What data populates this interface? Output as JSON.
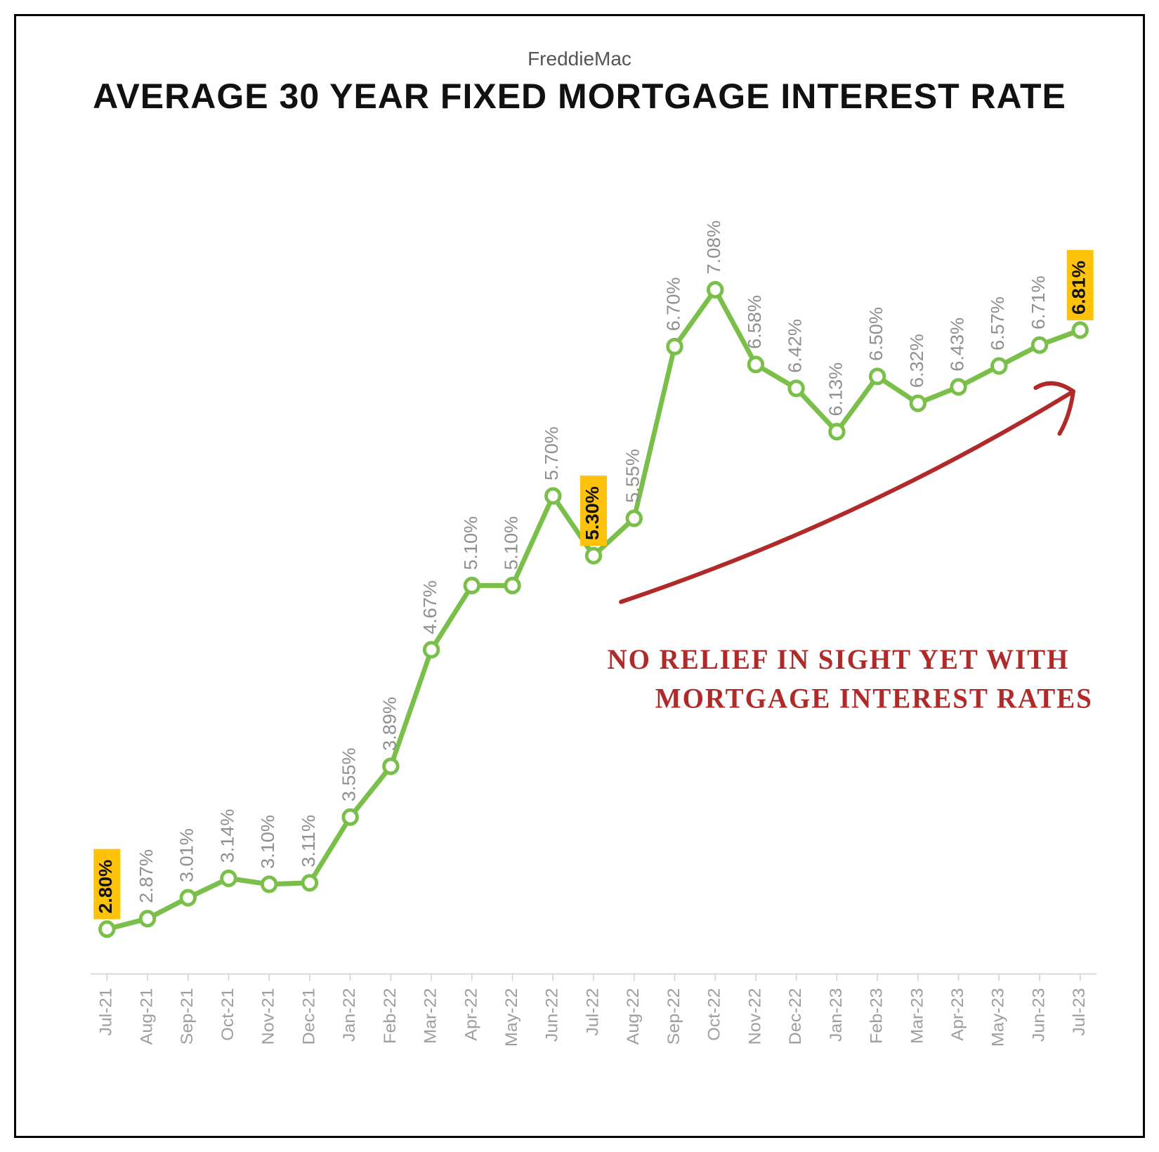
{
  "source_label": "FreddieMac",
  "title": "AVERAGE 30 YEAR FIXED MORTGAGE INTEREST RATE",
  "chart": {
    "type": "line",
    "background_color": "#ffffff",
    "line_color": "#79bf4a",
    "line_width": 7,
    "marker_style": "circle",
    "marker_radius": 10,
    "marker_fill": "#ffffff",
    "marker_stroke": "#79bf4a",
    "marker_stroke_width": 5,
    "axis_color": "#cfcfcf",
    "axis_width": 1.5,
    "tick_length": 10,
    "xaxis_label_color": "#9e9e9e",
    "xaxis_label_fontsize": 25,
    "data_label_color": "#8f8f8f",
    "data_label_fontsize": 27,
    "data_label_offset": 22,
    "highlight_bg": "#ffc20a",
    "highlight_text_color": "#111111",
    "highlight_fontweight": "bold",
    "ylim": [
      2.5,
      7.5
    ],
    "categories": [
      "Jul-21",
      "Aug-21",
      "Sep-21",
      "Oct-21",
      "Nov-21",
      "Dec-21",
      "Jan-22",
      "Feb-22",
      "Mar-22",
      "Apr-22",
      "May-22",
      "Jun-22",
      "Jul-22",
      "Aug-22",
      "Sep-22",
      "Oct-22",
      "Nov-22",
      "Dec-22",
      "Jan-23",
      "Feb-23",
      "Mar-23",
      "Apr-23",
      "May-23",
      "Jun-23",
      "Jul-23"
    ],
    "values": [
      2.8,
      2.87,
      3.01,
      3.14,
      3.1,
      3.11,
      3.55,
      3.89,
      4.67,
      5.1,
      5.1,
      5.7,
      5.3,
      5.55,
      6.7,
      7.08,
      6.58,
      6.42,
      6.13,
      6.5,
      6.32,
      6.43,
      6.57,
      6.71,
      6.81
    ],
    "labels": [
      "2.80%",
      "2.87%",
      "3.01%",
      "3.14%",
      "3.10%",
      "3.11%",
      "3.55%",
      "3.89%",
      "4.67%",
      "5.10%",
      "5.10%",
      "5.70%",
      "5.30%",
      "5.55%",
      "6.70%",
      "7.08%",
      "6.58%",
      "6.42%",
      "6.13%",
      "6.50%",
      "6.32%",
      "6.43%",
      "6.57%",
      "6.71%",
      "6.81%"
    ],
    "highlight_indices": [
      0,
      12,
      24
    ],
    "annotation": {
      "line1": "NO RELIEF IN SIGHT YET WITH",
      "line2": "MORTGAGE INTEREST RATES",
      "color": "#b02a2a",
      "fontsize": 40,
      "arrow_color": "#b02a2a",
      "arrow_width": 6
    }
  }
}
